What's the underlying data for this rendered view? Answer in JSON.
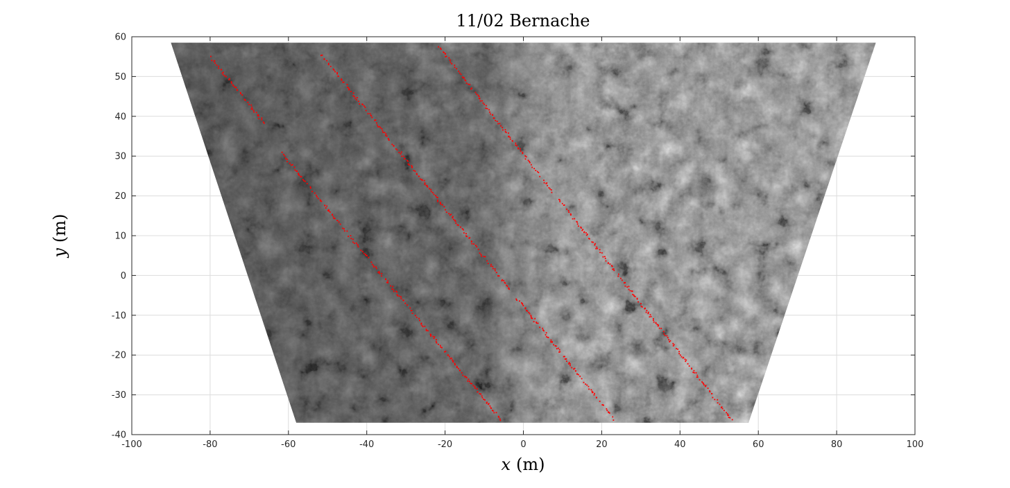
{
  "chart_data": {
    "type": "scatter",
    "title": "11/02 Bernache",
    "xlabel": "x (m)",
    "xlabel_var": "x",
    "xlabel_unit": "(m)",
    "ylabel": "y (m)",
    "ylabel_var": "y",
    "ylabel_unit": "(m)",
    "xlim": [
      -100,
      100
    ],
    "ylim": [
      -40,
      60
    ],
    "xticks": [
      -100,
      -80,
      -60,
      -40,
      -20,
      0,
      20,
      40,
      60,
      80,
      100
    ],
    "yticks": [
      -40,
      -30,
      -20,
      -10,
      0,
      10,
      20,
      30,
      40,
      50,
      60
    ],
    "grid": true,
    "background_image": "grayscale sea-ice orthophoto mosaic",
    "image_footprint": {
      "top_left": [
        -90,
        58.5
      ],
      "top_right": [
        90,
        58.5
      ],
      "bottom_right": [
        57.5,
        -37
      ],
      "bottom_left": [
        -58,
        -37
      ]
    },
    "series": [
      {
        "color": "#ff0000",
        "x": [
          -62,
          -6
        ],
        "y": [
          31,
          -36
        ]
      },
      {
        "color": "#ff0000",
        "x": [
          -52,
          23
        ],
        "y": [
          56,
          -36
        ]
      },
      {
        "color": "#ff0000",
        "x": [
          -22,
          53
        ],
        "y": [
          58,
          -36
        ]
      },
      {
        "color": "#ff0000",
        "x": [
          -80,
          -66
        ],
        "y": [
          55,
          38
        ]
      }
    ]
  },
  "colors": {
    "points": "#ff0000",
    "grid": "#dcdcdc",
    "axes": "#262626"
  }
}
